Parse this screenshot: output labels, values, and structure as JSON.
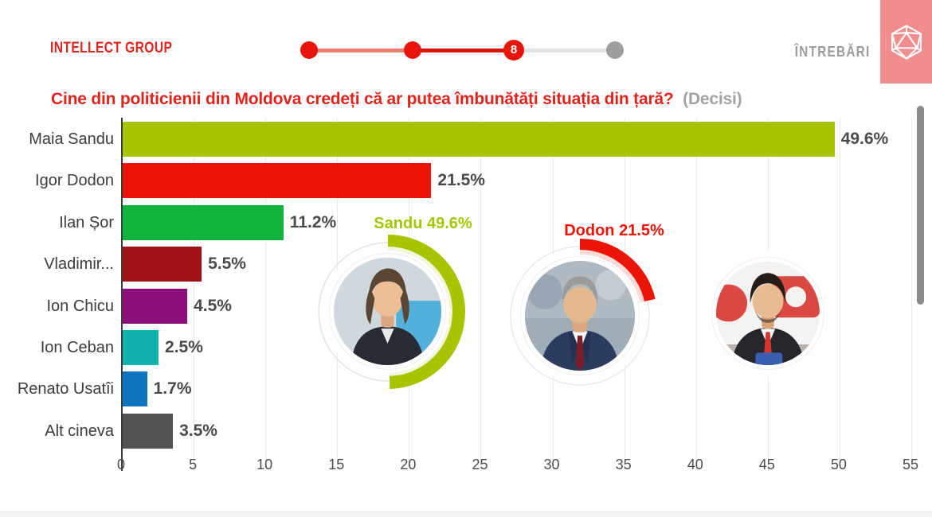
{
  "header": {
    "brand": "INTELLECT GROUP",
    "nav_label": "ÎNTREBĂRI",
    "progress": {
      "steps": [
        {
          "state": "done",
          "label": ""
        },
        {
          "state": "done",
          "label": ""
        },
        {
          "state": "current",
          "label": "8"
        },
        {
          "state": "upcoming",
          "label": ""
        }
      ]
    },
    "colors": {
      "accent": "#e0231c",
      "corner_bg": "#f18d8d",
      "muted": "#9b9b9b"
    }
  },
  "title": {
    "question": "Cine din politicienii din Moldova credeți că ar putea îmbunătăți situația din țară?",
    "note": "(Decisi)"
  },
  "chart_data": {
    "type": "bar",
    "orientation": "horizontal",
    "title": "Cine din politicienii din Moldova credeți că ar putea îmbunătăți situația din țară? (Decisi)",
    "categories": [
      "Maia Sandu",
      "Igor Dodon",
      "Ilan Șor",
      "Vladimir...",
      "Ion Chicu",
      "Ion Ceban",
      "Renato Usatîi",
      "Alt cineva"
    ],
    "values": [
      49.6,
      21.5,
      11.2,
      5.5,
      4.5,
      2.5,
      1.7,
      3.5
    ],
    "value_labels": [
      "49.6%",
      "21.5%",
      "11.2%",
      "5.5%",
      "4.5%",
      "2.5%",
      "1.7%",
      "3.5%"
    ],
    "bar_colors": [
      "#a8c400",
      "#ea1508",
      "#10b43c",
      "#9f1114",
      "#8d0e7b",
      "#10b2ad",
      "#0e74c0",
      "#525252"
    ],
    "xlim": [
      0,
      55
    ],
    "xticks": [
      0,
      5,
      10,
      15,
      20,
      25,
      30,
      35,
      40,
      45,
      50,
      55
    ],
    "grid": true,
    "legend": false
  },
  "callouts": [
    {
      "id": "sandu",
      "label": "Sandu 49.6%",
      "value": 49.6,
      "color": "#a8c400",
      "photo": "maia-sandu-photo"
    },
    {
      "id": "dodon",
      "label": "Dodon 21.5%",
      "value": 21.5,
      "color": "#ea1508",
      "photo": "igor-dodon-photo"
    },
    {
      "id": "sor",
      "label": "",
      "value": null,
      "color": null,
      "photo": "ilan-sor-photo"
    }
  ]
}
